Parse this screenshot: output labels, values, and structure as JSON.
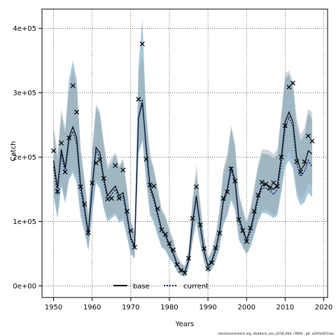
{
  "chart_data": {
    "type": "line",
    "xlabel": "Years",
    "ylabel": "Catch",
    "xlim": [
      1947,
      2021
    ],
    "ylim": [
      -18000,
      430000
    ],
    "x_ticks": [
      1950,
      1960,
      1970,
      1980,
      1990,
      2000,
      2010,
      2020
    ],
    "y_ticks": [
      0,
      100000,
      200000,
      300000,
      400000
    ],
    "y_tick_labels": [
      "0e+00",
      "1e+05",
      "2e+05",
      "3e+05",
      "4e+05"
    ],
    "grid": true,
    "legend": {
      "position": "bottom-center",
      "entries": [
        "base",
        "current"
      ]
    },
    "footnote": "stockassessment.org, Haddock_nea_2018_004, r9904 , git: a295ef2f11ae",
    "colors": {
      "band_current": "#8fb9cf",
      "band_base": "#9aa4a9",
      "line_base": "#000000",
      "line_current": "#0b2a6b",
      "points": "#000000"
    },
    "years": [
      1950,
      1951,
      1952,
      1953,
      1954,
      1955,
      1956,
      1957,
      1958,
      1959,
      1960,
      1961,
      1962,
      1963,
      1964,
      1965,
      1966,
      1967,
      1968,
      1969,
      1970,
      1971,
      1972,
      1973,
      1974,
      1975,
      1976,
      1977,
      1978,
      1979,
      1980,
      1981,
      1982,
      1983,
      1984,
      1985,
      1986,
      1987,
      1988,
      1989,
      1990,
      1991,
      1992,
      1993,
      1994,
      1995,
      1996,
      1997,
      1998,
      1999,
      2000,
      2001,
      2002,
      2003,
      2004,
      2005,
      2006,
      2007,
      2008,
      2009,
      2010,
      2011,
      2012,
      2013,
      2014,
      2015,
      2016,
      2017
    ],
    "observed": [
      210000,
      147000,
      222000,
      177000,
      230000,
      311000,
      270000,
      154000,
      127000,
      83000,
      160000,
      191000,
      196000,
      167000,
      135000,
      136000,
      187000,
      136000,
      180000,
      116000,
      86000,
      60000,
      290000,
      376000,
      197000,
      157000,
      155000,
      120000,
      87000,
      80000,
      66000,
      56000,
      33000,
      24000,
      20000,
      43000,
      105000,
      154000,
      95000,
      58000,
      27000,
      36000,
      59000,
      82000,
      136000,
      146000,
      182000,
      163000,
      103000,
      86000,
      69000,
      90000,
      116000,
      141000,
      161000,
      158000,
      152000,
      160000,
      155000,
      200000,
      249000,
      309000,
      315000,
      193000,
      177000,
      193000,
      233000,
      225000
    ],
    "series": [
      {
        "name": "base",
        "values": [
          195000,
          152000,
          212000,
          183000,
          231000,
          247000,
          230000,
          158000,
          123000,
          82000,
          155000,
          215000,
          207000,
          167000,
          140000,
          148000,
          155000,
          140000,
          145000,
          112000,
          75000,
          62000,
          260000,
          285000,
          215000,
          155000,
          137000,
          112000,
          88000,
          80000,
          64000,
          52000,
          34000,
          25000,
          22000,
          40000,
          99000,
          140000,
          94000,
          55000,
          31000,
          39000,
          57000,
          85000,
          134000,
          150000,
          185000,
          165000,
          105000,
          88000,
          72000,
          88000,
          113000,
          140000,
          156000,
          158000,
          155000,
          150000,
          157000,
          200000,
          255000,
          270000,
          255000,
          200000,
          180000,
          188000,
          210000,
          205000
        ],
        "lower": [
          150000,
          110000,
          160000,
          135000,
          170000,
          180000,
          170000,
          115000,
          90000,
          58000,
          115000,
          165000,
          160000,
          125000,
          105000,
          110000,
          115000,
          103000,
          107000,
          80000,
          52000,
          45000,
          205000,
          230000,
          170000,
          118000,
          103000,
          82000,
          62000,
          57000,
          45000,
          37000,
          23000,
          17000,
          15000,
          28000,
          70000,
          103000,
          67000,
          38000,
          21000,
          26000,
          40000,
          60000,
          98000,
          112000,
          138000,
          123000,
          75000,
          63000,
          51000,
          63000,
          83000,
          105000,
          118000,
          120000,
          115000,
          110000,
          116000,
          152000,
          195000,
          210000,
          195000,
          150000,
          135000,
          142000,
          160000,
          155000
        ],
        "upper": [
          250000,
          208000,
          275000,
          245000,
          305000,
          335000,
          310000,
          215000,
          168000,
          112000,
          210000,
          282000,
          272000,
          225000,
          188000,
          198000,
          208000,
          188000,
          195000,
          152000,
          102000,
          85000,
          330000,
          355000,
          275000,
          205000,
          183000,
          152000,
          120000,
          110000,
          88000,
          72000,
          48000,
          36000,
          31000,
          56000,
          136000,
          188000,
          130000,
          78000,
          44000,
          55000,
          80000,
          120000,
          183000,
          205000,
          250000,
          222000,
          145000,
          122000,
          100000,
          122000,
          155000,
          190000,
          212000,
          212000,
          210000,
          205000,
          212000,
          270000,
          330000,
          335000,
          318000,
          260000,
          235000,
          245000,
          275000,
          270000
        ]
      },
      {
        "name": "current",
        "values": [
          185000,
          142000,
          205000,
          175000,
          225000,
          240000,
          220000,
          150000,
          117000,
          77000,
          150000,
          210000,
          200000,
          162000,
          135000,
          142000,
          150000,
          135000,
          140000,
          107000,
          72000,
          59000,
          260000,
          290000,
          207000,
          150000,
          132000,
          108000,
          84000,
          77000,
          61000,
          50000,
          32000,
          24000,
          21000,
          39000,
          96000,
          136000,
          91000,
          53000,
          30000,
          37000,
          55000,
          82000,
          130000,
          145000,
          180000,
          160000,
          101000,
          85000,
          69000,
          84000,
          108000,
          135000,
          152000,
          152000,
          148000,
          142000,
          150000,
          190000,
          245000,
          262000,
          248000,
          190000,
          170000,
          178000,
          195000,
          185000
        ],
        "lower": [
          140000,
          104000,
          155000,
          128000,
          165000,
          175000,
          160000,
          108000,
          84000,
          54000,
          110000,
          160000,
          150000,
          120000,
          100000,
          105000,
          110000,
          98000,
          102000,
          76000,
          49000,
          42000,
          205000,
          225000,
          160000,
          110000,
          97000,
          78000,
          60000,
          55000,
          43000,
          35000,
          22000,
          16000,
          14000,
          27000,
          67000,
          99000,
          64000,
          36000,
          20000,
          25000,
          38000,
          58000,
          95000,
          108000,
          133000,
          118000,
          72000,
          60000,
          49000,
          60000,
          79000,
          100000,
          113000,
          113000,
          110000,
          105000,
          110000,
          145000,
          185000,
          195000,
          182000,
          140000,
          125000,
          130000,
          145000,
          138000
        ],
        "upper": [
          240000,
          196000,
          265000,
          238000,
          320000,
          350000,
          320000,
          210000,
          163000,
          107000,
          205000,
          278000,
          265000,
          218000,
          180000,
          190000,
          205000,
          183000,
          198000,
          150000,
          99000,
          82000,
          340000,
          415000,
          260000,
          200000,
          178000,
          147000,
          116000,
          106000,
          85000,
          70000,
          46000,
          35000,
          30000,
          54000,
          131000,
          172000,
          125000,
          75000,
          42000,
          53000,
          77000,
          117000,
          176000,
          197000,
          245000,
          215000,
          140000,
          117000,
          96000,
          117000,
          149000,
          183000,
          206000,
          205000,
          203000,
          198000,
          204000,
          260000,
          322000,
          328000,
          310000,
          250000,
          225000,
          234000,
          270000,
          258000
        ]
      }
    ]
  }
}
